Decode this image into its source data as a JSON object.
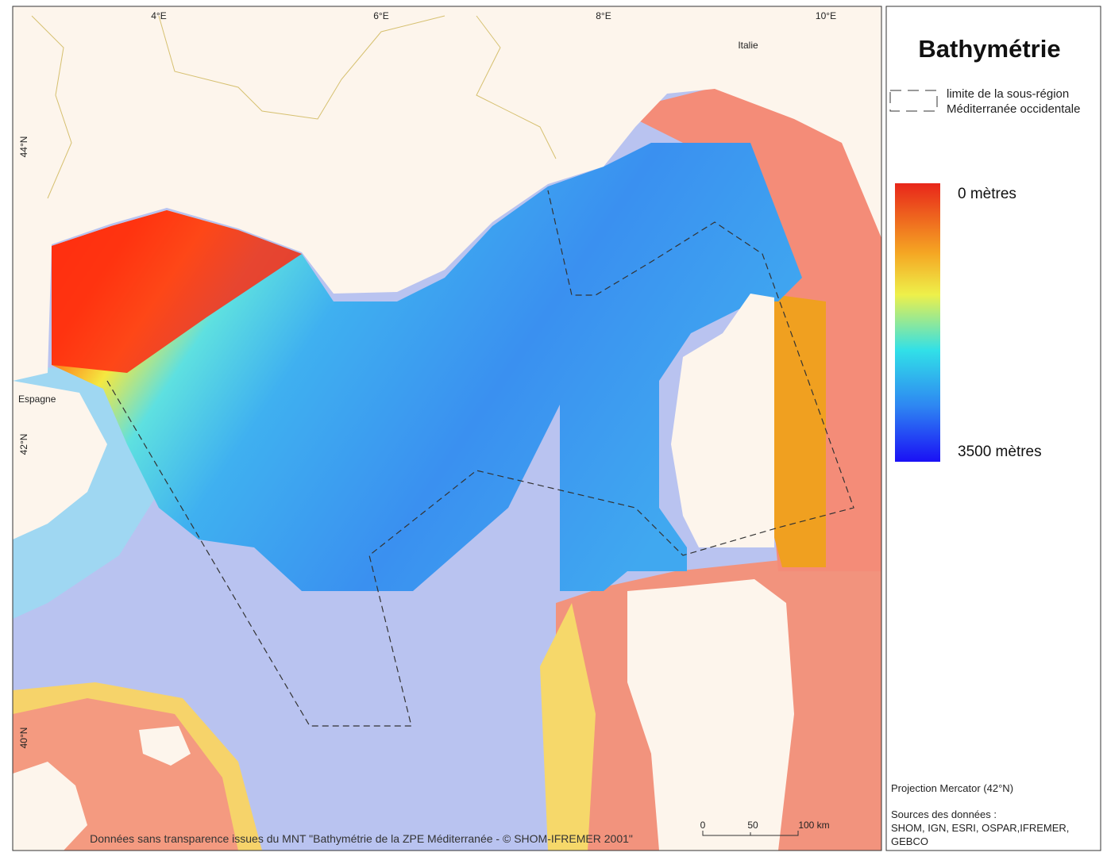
{
  "map": {
    "graticule": {
      "longitudes": [
        "4°E",
        "6°E",
        "8°E",
        "10°E"
      ],
      "latitudes": [
        "44°N",
        "42°N",
        "40°N"
      ]
    },
    "places": [
      "Italie",
      "Espagne"
    ],
    "credit": "Données sans transparence issues du MNT \"Bathymétrie de la ZPE Méditerranée - © SHOM-IFREMER 2001\"",
    "scale_bar": [
      "0",
      "50",
      "100 km"
    ]
  },
  "legend": {
    "title": "Bathymétrie",
    "boundary": [
      "limite de la sous-région",
      "Méditerranée occidentale"
    ],
    "color_scale": {
      "top": "0 mètres",
      "bottom": "3500 mètres"
    },
    "projection": "Projection Mercator (42°N)",
    "sources": [
      "Sources des données :",
      "SHOM, IGN, ESRI, OSPAR,IFREMER,",
      "GEBCO"
    ]
  }
}
